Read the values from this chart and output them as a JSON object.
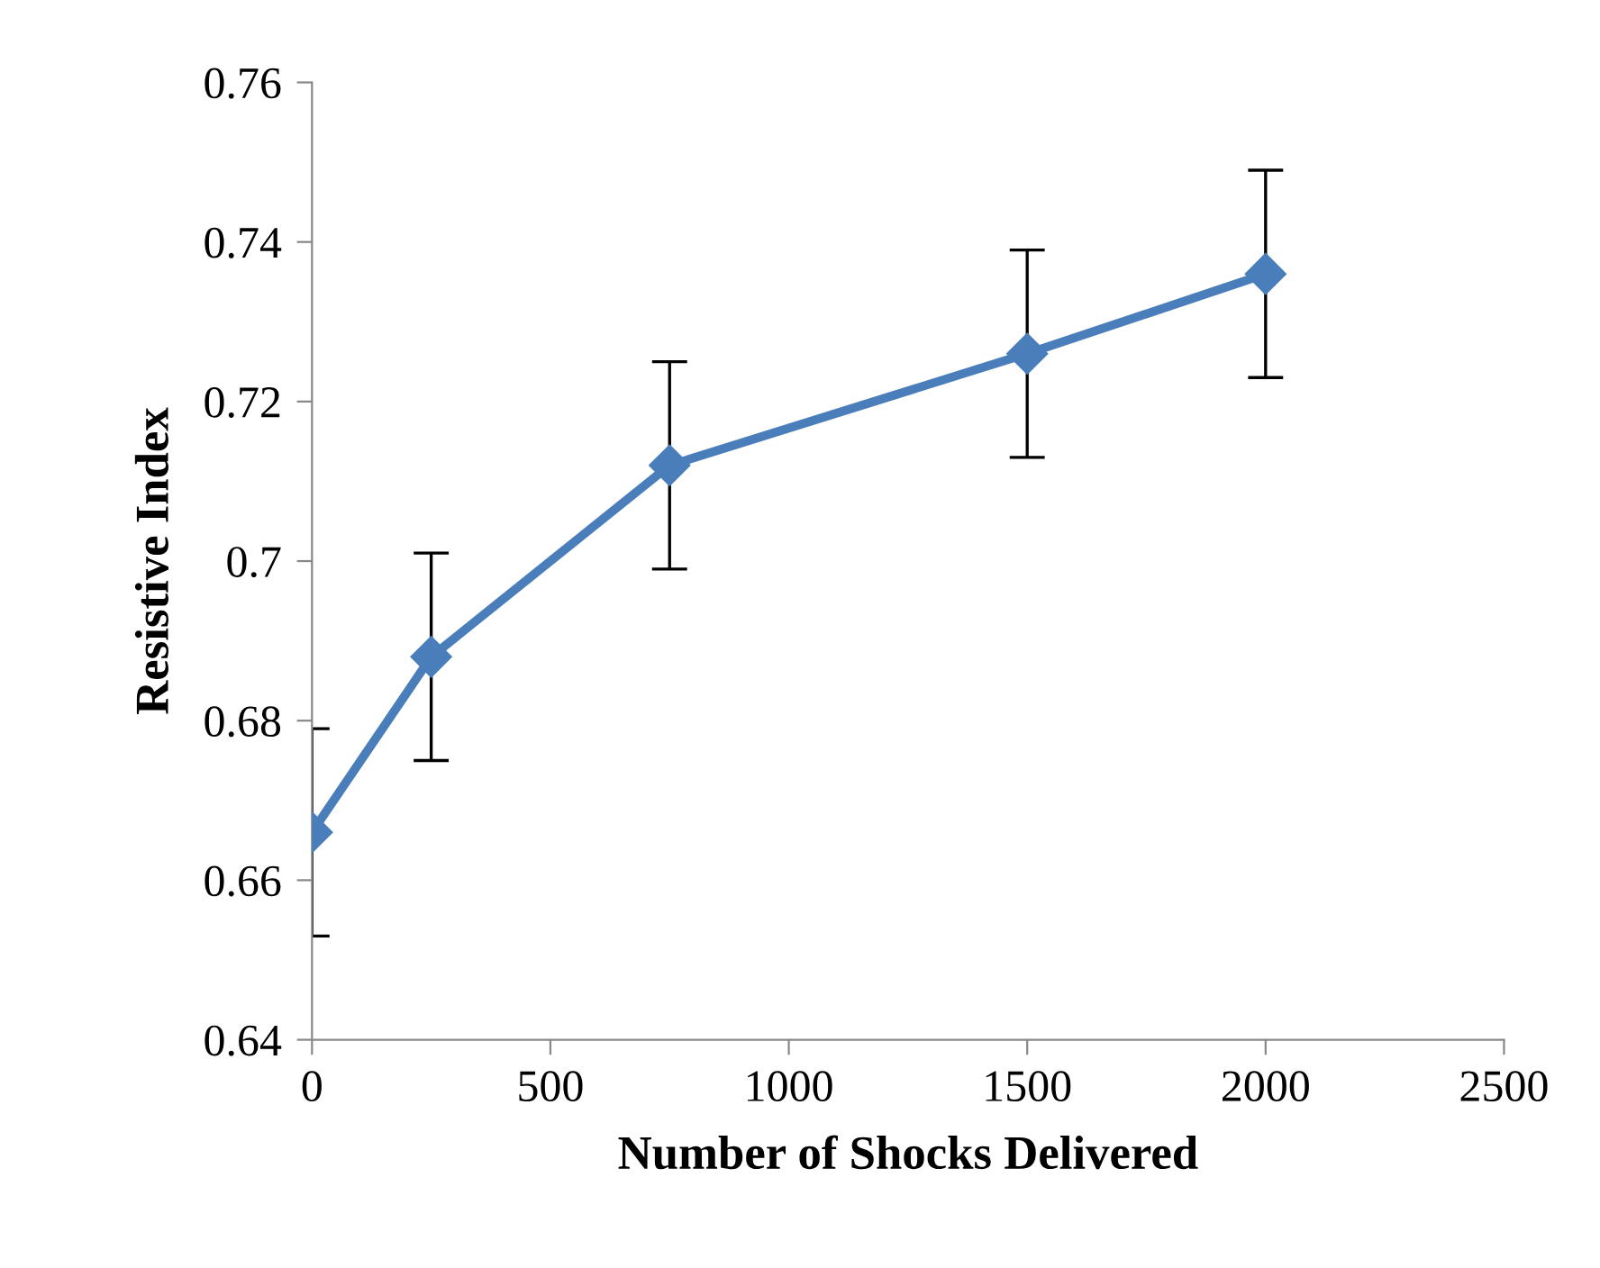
{
  "chart_data": {
    "type": "line",
    "xlabel": "Number of Shocks Delivered",
    "ylabel": "Resistive Index",
    "x": [
      0,
      250,
      750,
      1500,
      2000
    ],
    "series": [
      {
        "color": "#4a7ebb",
        "values": [
          0.666,
          0.688,
          0.712,
          0.726,
          0.736
        ],
        "errors": [
          0.013,
          0.013,
          0.013,
          0.013,
          0.013
        ]
      }
    ],
    "xlim": [
      0,
      2500
    ],
    "xticks": [
      0,
      500,
      1000,
      1500,
      2000,
      2500
    ],
    "ylim": [
      0.64,
      0.76
    ],
    "yticks": [
      {
        "value": 0.64,
        "label": "0.64"
      },
      {
        "value": 0.66,
        "label": "0.66"
      },
      {
        "value": 0.68,
        "label": "0.68"
      },
      {
        "value": 0.7,
        "label": "0.7"
      },
      {
        "value": 0.72,
        "label": "0.72"
      },
      {
        "value": 0.74,
        "label": "0.74"
      },
      {
        "value": 0.76,
        "label": "0.76"
      }
    ],
    "grid": false,
    "legend": false,
    "marker": "diamond",
    "line_style": "solid"
  }
}
